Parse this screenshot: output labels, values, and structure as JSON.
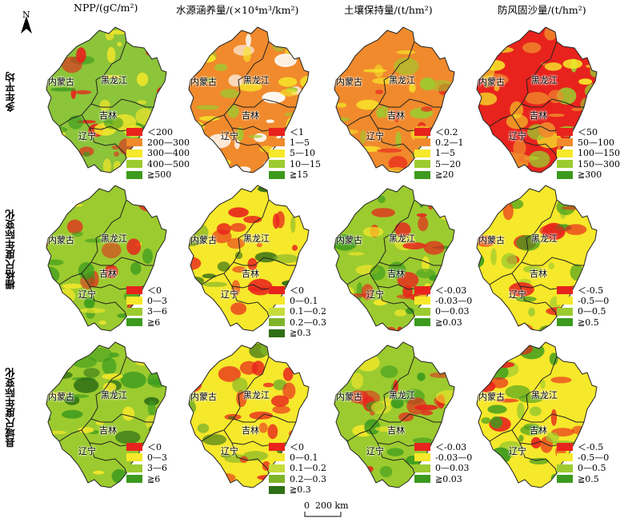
{
  "north_label": "N",
  "column_titles": [
    "NPP/(gC/m²)",
    "水源涵养量/(×10⁴m³/km²)",
    "土壤保持量/(t/hm²)",
    "防风固沙量/(t/hm²)"
  ],
  "row_labels": [
    "多年平均",
    "栅格尺度年际变化",
    "县域尺度年际变化"
  ],
  "provinces": {
    "neimenggu": "内蒙古",
    "heilongjiang": "黑龙江",
    "jilin": "吉林",
    "liaoning": "辽宁"
  },
  "legends": [
    [
      {
        "items": [
          "＜200",
          "200—300",
          "300—400",
          "400—500",
          "≧500"
        ],
        "colors": [
          "#e8231d",
          "#f08a2c",
          "#f6e82a",
          "#9ccb2f",
          "#3c9b1e"
        ]
      },
      {
        "items": [
          "＜1",
          "1—5",
          "5—10",
          "10—15",
          "≧15"
        ],
        "colors": [
          "#e8231d",
          "#f08a2c",
          "#f6e82a",
          "#9ccb2f",
          "#3c9b1e"
        ]
      },
      {
        "items": [
          "＜0.2",
          "0.2—1",
          "1—5",
          "5—20",
          "≧20"
        ],
        "colors": [
          "#e8231d",
          "#f08a2c",
          "#f6e82a",
          "#9ccb2f",
          "#3c9b1e"
        ]
      },
      {
        "items": [
          "＜50",
          "50—100",
          "100—150",
          "150—300",
          "≧300"
        ],
        "colors": [
          "#e8231d",
          "#f08a2c",
          "#f6e82a",
          "#9ccb2f",
          "#3c9b1e"
        ]
      }
    ],
    [
      {
        "items": [
          "＜0",
          "0—3",
          "3—6",
          "≧6"
        ],
        "colors": [
          "#e8231d",
          "#f6e82a",
          "#9ccb2f",
          "#3c9b1e"
        ]
      },
      {
        "items": [
          "＜0",
          "0—0.1",
          "0.1—0.2",
          "0.2—0.3",
          "≧0.3"
        ],
        "colors": [
          "#e8231d",
          "#f6e82a",
          "#c5dc3a",
          "#7fb42a",
          "#2f6f16"
        ]
      },
      {
        "items": [
          "＜-0.03",
          "-0.03—0",
          "0—0.03",
          "≧0.03"
        ],
        "colors": [
          "#e8231d",
          "#f6e82a",
          "#9ccb2f",
          "#3c9b1e"
        ]
      },
      {
        "items": [
          "＜-0.5",
          "-0.5—0",
          "0—0.5",
          "≧0.5"
        ],
        "colors": [
          "#e8231d",
          "#f6e82a",
          "#9ccb2f",
          "#3c9b1e"
        ]
      }
    ],
    [
      {
        "items": [
          "＜0",
          "0—3",
          "3—6",
          "≧6"
        ],
        "colors": [
          "#e8231d",
          "#f6e82a",
          "#9ccb2f",
          "#3c9b1e"
        ]
      },
      {
        "items": [
          "＜0",
          "0—0.1",
          "0.1—0.2",
          "0.2—0.3",
          "≧0.3"
        ],
        "colors": [
          "#e8231d",
          "#f6e82a",
          "#c5dc3a",
          "#7fb42a",
          "#2f6f16"
        ]
      },
      {
        "items": [
          "＜-0.03",
          "-0.03—0",
          "0—0.03",
          "≧0.03"
        ],
        "colors": [
          "#e8231d",
          "#f6e82a",
          "#9ccb2f",
          "#3c9b1e"
        ]
      },
      {
        "items": [
          "＜-0.5",
          "-0.5—0",
          "0—0.5",
          "≧0.5"
        ],
        "colors": [
          "#e8231d",
          "#f6e82a",
          "#9ccb2f",
          "#3c9b1e"
        ]
      }
    ]
  ],
  "map_fills": [
    [
      {
        "base": "#8cc43a",
        "accents": [
          "#f6e82a",
          "#3c9b1e",
          "#e8231d"
        ]
      },
      {
        "base": "#f08a2c",
        "accents": [
          "#9ccb2f",
          "#f6e82a",
          "#ffffff"
        ]
      },
      {
        "base": "#f08a2c",
        "accents": [
          "#9ccb2f",
          "#e8231d",
          "#f6e82a"
        ]
      },
      {
        "base": "#e8231d",
        "accents": [
          "#f08a2c",
          "#9ccb2f",
          "#f6e82a"
        ]
      }
    ],
    [
      {
        "base": "#9ccb2f",
        "accents": [
          "#f6e82a",
          "#3c9b1e",
          "#e8231d"
        ]
      },
      {
        "base": "#f6e82a",
        "accents": [
          "#7fb42a",
          "#2f6f16",
          "#e8231d"
        ]
      },
      {
        "base": "#9ccb2f",
        "accents": [
          "#f6e82a",
          "#e8231d",
          "#3c9b1e"
        ]
      },
      {
        "base": "#f6e82a",
        "accents": [
          "#9ccb2f",
          "#3c9b1e",
          "#e8231d"
        ]
      }
    ],
    [
      {
        "base": "#9ccb2f",
        "accents": [
          "#3c9b1e",
          "#f6e82a",
          "#2f6f16"
        ]
      },
      {
        "base": "#f6e82a",
        "accents": [
          "#e8231d",
          "#7fb42a",
          "#2f6f16"
        ]
      },
      {
        "base": "#9ccb2f",
        "accents": [
          "#f6e82a",
          "#e8231d",
          "#3c9b1e"
        ]
      },
      {
        "base": "#f6e82a",
        "accents": [
          "#9ccb2f",
          "#3c9b1e",
          "#e8231d"
        ]
      }
    ]
  ],
  "scale_bar": {
    "start": "0",
    "end": "200 km"
  }
}
